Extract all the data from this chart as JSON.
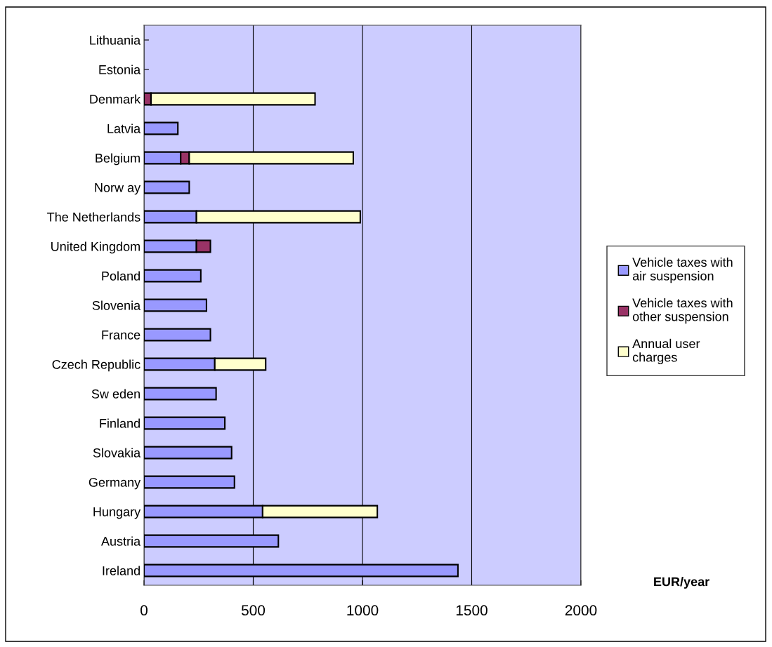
{
  "chart_data": {
    "type": "bar",
    "orientation": "horizontal",
    "stacked": true,
    "xlabel": "EUR/year",
    "categories": [
      "Lithuania",
      "Estonia",
      "Denmark",
      "Latvia",
      "Belgium",
      "Norw ay",
      "The Netherlands",
      "United Kingdom",
      "Poland",
      "Slovenia",
      "France",
      "Czech Republic",
      "Sw eden",
      "Finland",
      "Slovakia",
      "Germany",
      "Hungary",
      "Austria",
      "Ireland"
    ],
    "series": [
      {
        "name": "Vehicle taxes with\nair suspension",
        "color": "#9999ff",
        "values": [
          null,
          null,
          null,
          155,
          168,
          207,
          240,
          240,
          260,
          286,
          304,
          324,
          330,
          370,
          401,
          414,
          543,
          615,
          1437
        ]
      },
      {
        "name": "Vehicle taxes with\nother suspension",
        "color": "#993366",
        "values": [
          null,
          null,
          32,
          null,
          39,
          null,
          null,
          64,
          null,
          null,
          null,
          null,
          null,
          null,
          null,
          null,
          null,
          null,
          null
        ]
      },
      {
        "name": "Annual user\ncharges",
        "color": "#ffffcc",
        "values": [
          null,
          null,
          751,
          null,
          751,
          null,
          750,
          null,
          null,
          null,
          null,
          233,
          null,
          null,
          null,
          null,
          525,
          null,
          null
        ]
      }
    ],
    "xlim": [
      0,
      2000
    ],
    "xticks": [
      0,
      500,
      1000,
      1500,
      2000
    ],
    "grid": "x",
    "legend": "right"
  }
}
